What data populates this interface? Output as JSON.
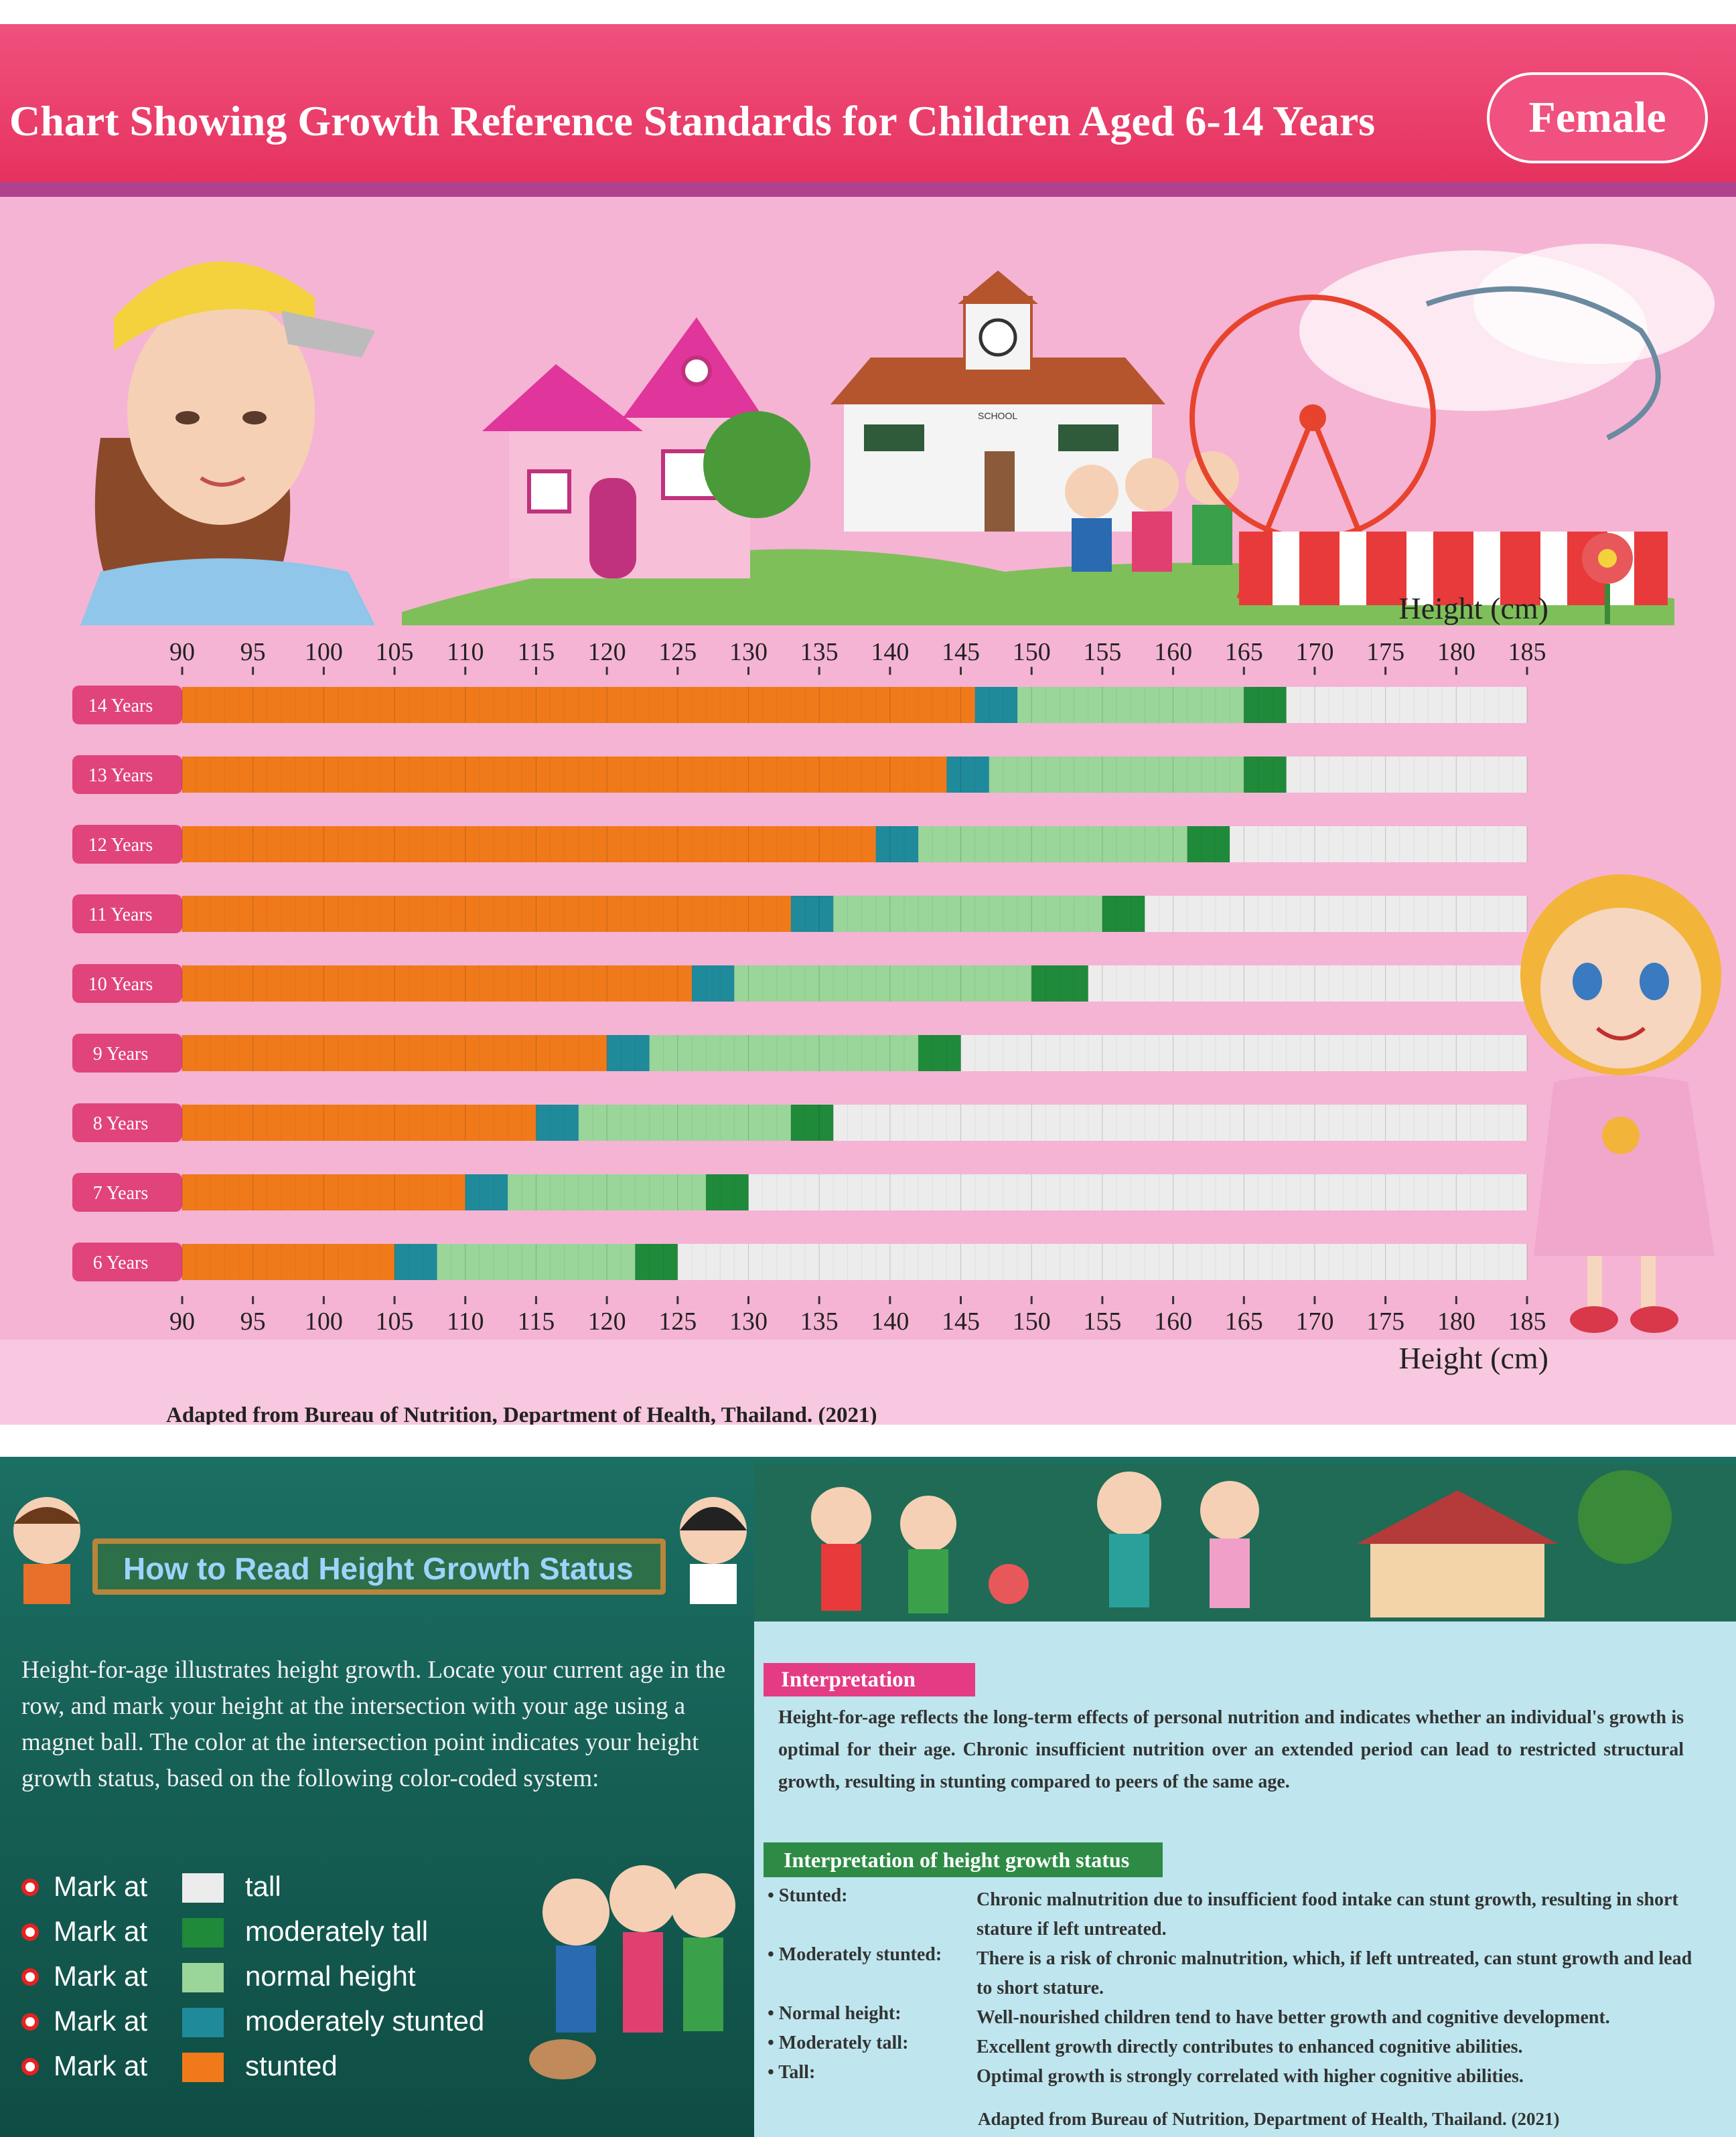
{
  "header": {
    "title": "Chart Showing Growth Reference Standards for Children Aged 6-14 Years",
    "gender": "Female"
  },
  "colors": {
    "header_bg": "#e6325f",
    "poster_bg": "#f5b4d4",
    "stunted": "#f07a1a",
    "moderately_stunted": "#1f8a9a",
    "normal_height": "#9ad59a",
    "moderately_tall": "#1f8a3a",
    "tall": "#ececec",
    "row_label_bg": "#e0447a"
  },
  "chart_data": {
    "type": "bar",
    "title": "Chart Showing Growth Reference Standards for Children Aged 6-14 Years",
    "xlabel": "Height (cm)",
    "ylabel": "",
    "xlim": [
      90,
      185
    ],
    "x_ticks": [
      "90",
      "95",
      "100",
      "105",
      "110",
      "115",
      "120",
      "125",
      "130",
      "135",
      "140",
      "145",
      "150",
      "155",
      "160",
      "165",
      "170",
      "175",
      "180",
      "185"
    ],
    "categories": [
      "14 Years",
      "13 Years",
      "12 Years",
      "11 Years",
      "10 Years",
      "9 Years",
      "8 Years",
      "7 Years",
      "6 Years"
    ],
    "stacked": true,
    "series": [
      {
        "name": "stunted",
        "start": [
          90,
          90,
          90,
          90,
          90,
          90,
          90,
          90,
          90
        ],
        "end": [
          146,
          144,
          139,
          133,
          126,
          120,
          115,
          110,
          105
        ]
      },
      {
        "name": "moderately stunted",
        "start": [
          146,
          144,
          139,
          133,
          126,
          120,
          115,
          110,
          105
        ],
        "end": [
          149,
          147,
          142,
          136,
          129,
          123,
          118,
          113,
          108
        ]
      },
      {
        "name": "normal height",
        "start": [
          149,
          147,
          142,
          136,
          129,
          123,
          118,
          113,
          108
        ],
        "end": [
          165,
          165,
          161,
          155,
          150,
          142,
          133,
          127,
          122
        ]
      },
      {
        "name": "moderately tall",
        "start": [
          165,
          165,
          161,
          155,
          150,
          142,
          133,
          127,
          122
        ],
        "end": [
          168,
          168,
          164,
          158,
          154,
          145,
          136,
          130,
          125
        ]
      },
      {
        "name": "tall",
        "start": [
          168,
          168,
          164,
          158,
          154,
          145,
          136,
          130,
          125
        ],
        "end": [
          185,
          185,
          185,
          185,
          185,
          185,
          185,
          185,
          185
        ]
      }
    ],
    "legend": "bottom-left"
  },
  "axis_top_label": "Height (cm)",
  "axis_bottom_label": "Height (cm)",
  "footer": "Adapted from Bureau of Nutrition, Department of Health, Thailand. (2021)",
  "howto": {
    "banner": "How to Read Height Growth Status",
    "text": "Height-for-age illustrates height growth. Locate your current age in the row, and mark your height at the intersection with your age using a magnet ball. The color at the intersection point indicates your height growth status, based on the following color-coded system:",
    "legend": [
      {
        "mark": "Mark at",
        "label": "tall",
        "color": "#ececec"
      },
      {
        "mark": "Mark at",
        "label": "moderately tall",
        "color": "#1f8a3a"
      },
      {
        "mark": "Mark at",
        "label": "normal height",
        "color": "#9ad59a"
      },
      {
        "mark": "Mark at",
        "label": "moderately stunted",
        "color": "#1f8a9a"
      },
      {
        "mark": "Mark at",
        "label": "stunted",
        "color": "#f07a1a"
      }
    ]
  },
  "interpretation": {
    "tag": "Interpretation",
    "text": "Height-for-age reflects the long-term effects of personal nutrition and indicates whether an individual's growth is optimal for their age. Chronic insufficient nutrition over an extended period can lead to restricted structural growth, resulting in stunting compared to peers of the same age.",
    "status_tag": "Interpretation of height growth status",
    "statuses": [
      {
        "term": "• Stunted:",
        "desc": "Chronic malnutrition due to insufficient food intake can stunt growth, resulting in short stature if left untreated."
      },
      {
        "term": "• Moderately stunted:",
        "desc": "There is a risk of chronic malnutrition, which, if left untreated, can stunt growth and lead to short stature."
      },
      {
        "term": "• Normal height:",
        "desc": "Well-nourished children tend to have better growth and cognitive development."
      },
      {
        "term": "• Moderately tall:",
        "desc": "Excellent growth directly contributes to enhanced cognitive abilities."
      },
      {
        "term": "• Tall:",
        "desc": "Optimal growth is strongly correlated with higher cognitive abilities."
      }
    ],
    "source": "Adapted from Bureau of Nutrition, Department of Health, Thailand. (2021)"
  },
  "scene_text": {
    "school_sign": "SCHOOL"
  }
}
